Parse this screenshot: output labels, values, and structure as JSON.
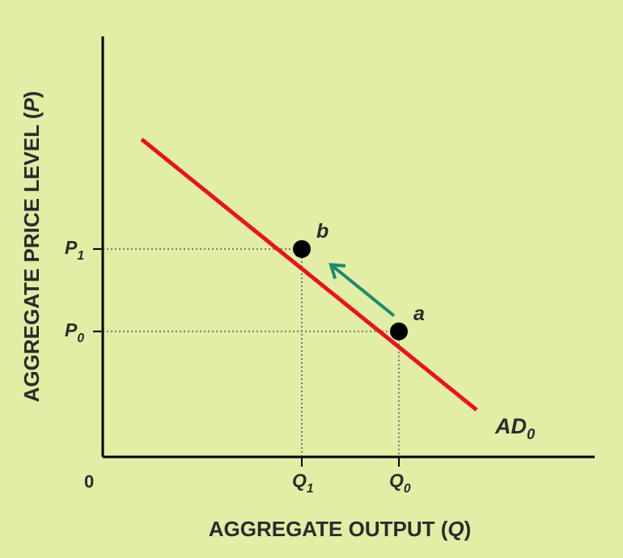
{
  "chart_data": {
    "type": "line",
    "xlabel": "AGGREGATE OUTPUT (Q)",
    "ylabel": "AGGREGATE PRICE LEVEL (P)",
    "origin_label": "0",
    "xlim": [
      0,
      10
    ],
    "ylim": [
      0,
      10
    ],
    "grid": false,
    "x_ticks": [
      {
        "main": "Q",
        "sub": "1",
        "value": 4.1
      },
      {
        "main": "Q",
        "sub": "0",
        "value": 6.1
      }
    ],
    "y_ticks": [
      {
        "main": "P",
        "sub": "1",
        "value": 5.3
      },
      {
        "main": "P",
        "sub": "0",
        "value": 3.2
      }
    ],
    "series": [
      {
        "name": "AD",
        "name_sub": "0",
        "color": "#e8141c",
        "x": [
          0.8,
          7.7
        ],
        "y": [
          8.1,
          1.2
        ]
      }
    ],
    "points": [
      {
        "label": "b",
        "x": 4.1,
        "y": 5.3
      },
      {
        "label": "a",
        "x": 6.1,
        "y": 3.2
      }
    ],
    "arrow": {
      "from": {
        "x": 6.0,
        "y": 3.6
      },
      "to": {
        "x": 4.7,
        "y": 4.9
      },
      "color": "#1f8a70"
    },
    "colors": {
      "axis": "#000000",
      "guide": "#7a7a7a",
      "text": "#2b2b2b"
    }
  }
}
